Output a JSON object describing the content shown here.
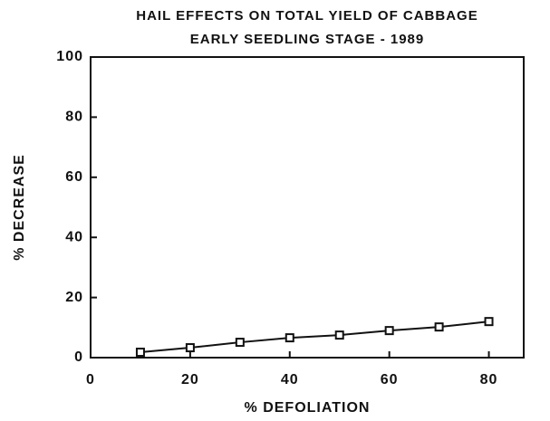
{
  "chart_data": {
    "type": "line",
    "title": [
      "HAIL EFFECTS ON TOTAL YIELD OF CABBAGE",
      "EARLY SEEDLING STAGE - 1989"
    ],
    "x_label": "% DEFOLIATION",
    "y_label": "% DECREASE",
    "x": [
      10,
      20,
      30,
      40,
      50,
      60,
      70,
      80
    ],
    "series": [
      {
        "color": "#111111",
        "values": [
          1.8,
          3.3,
          5.1,
          6.6,
          7.5,
          9,
          10.2,
          12
        ]
      }
    ],
    "xlim": [
      0,
      87
    ],
    "xticks": [
      0,
      20,
      40,
      60,
      80
    ],
    "ylim": [
      0,
      100
    ],
    "yticks": [
      0,
      20,
      40,
      60,
      80,
      100
    ],
    "grid": false
  }
}
